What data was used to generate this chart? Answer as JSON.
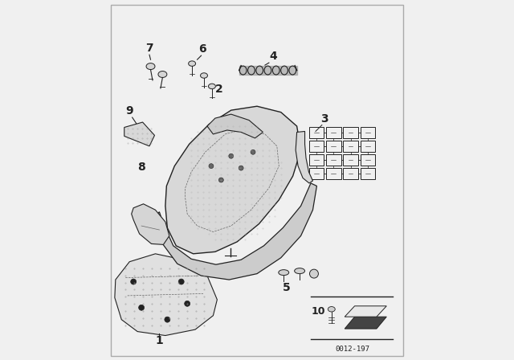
{
  "background_color": "#f0f0f0",
  "diagram_id": "0012-197",
  "dark": "#222222",
  "gray": "#666666",
  "light_gray": "#dddddd",
  "mid_gray": "#aaaaaa"
}
